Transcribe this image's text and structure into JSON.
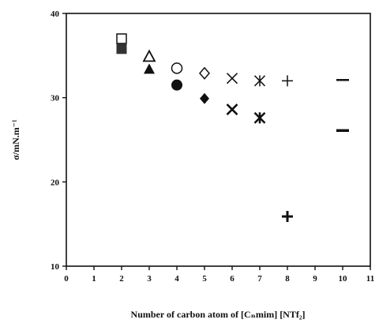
{
  "chart_data": {
    "type": "scatter",
    "title": "",
    "xlabel": "Number of carbon atom of [Cₙmim] [NTf₂]",
    "ylabel": "σ/mN.m⁻¹",
    "xlim": [
      0,
      11
    ],
    "ylim": [
      10,
      40
    ],
    "x_ticks": [
      0,
      1,
      2,
      3,
      4,
      5,
      6,
      7,
      8,
      9,
      10,
      11
    ],
    "y_ticks": [
      10,
      20,
      30,
      40
    ],
    "grid": false,
    "legend": "none",
    "series": [
      {
        "marker": "square-open",
        "color": "#111111",
        "points": [
          {
            "x": 2,
            "y": 37.0
          }
        ]
      },
      {
        "marker": "square-filled",
        "color": "#333333",
        "points": [
          {
            "x": 2,
            "y": 35.8
          }
        ]
      },
      {
        "marker": "triangle-open",
        "color": "#111111",
        "points": [
          {
            "x": 3,
            "y": 34.9
          }
        ]
      },
      {
        "marker": "triangle-filled",
        "color": "#111111",
        "points": [
          {
            "x": 3,
            "y": 33.4
          }
        ]
      },
      {
        "marker": "circle-open",
        "color": "#111111",
        "points": [
          {
            "x": 4,
            "y": 33.5
          }
        ]
      },
      {
        "marker": "circle-filled",
        "color": "#111111",
        "points": [
          {
            "x": 4,
            "y": 31.5
          }
        ]
      },
      {
        "marker": "diamond-open",
        "color": "#111111",
        "points": [
          {
            "x": 5,
            "y": 32.9
          }
        ]
      },
      {
        "marker": "diamond-filled",
        "color": "#111111",
        "points": [
          {
            "x": 5,
            "y": 29.9
          }
        ]
      },
      {
        "marker": "x-thin",
        "color": "#111111",
        "points": [
          {
            "x": 6,
            "y": 32.3
          }
        ]
      },
      {
        "marker": "x-thick",
        "color": "#111111",
        "points": [
          {
            "x": 6,
            "y": 28.6
          }
        ]
      },
      {
        "marker": "asterisk-thin",
        "color": "#111111",
        "points": [
          {
            "x": 7,
            "y": 32.0
          }
        ]
      },
      {
        "marker": "asterisk-thick",
        "color": "#111111",
        "points": [
          {
            "x": 7,
            "y": 27.6
          }
        ]
      },
      {
        "marker": "plus-thin",
        "color": "#111111",
        "points": [
          {
            "x": 8,
            "y": 32.0
          }
        ]
      },
      {
        "marker": "plus-thick",
        "color": "#111111",
        "points": [
          {
            "x": 8,
            "y": 15.9
          }
        ]
      },
      {
        "marker": "dash-thin",
        "color": "#111111",
        "points": [
          {
            "x": 10,
            "y": 32.1
          }
        ]
      },
      {
        "marker": "dash-thick",
        "color": "#111111",
        "points": [
          {
            "x": 10,
            "y": 26.1
          }
        ]
      }
    ]
  }
}
